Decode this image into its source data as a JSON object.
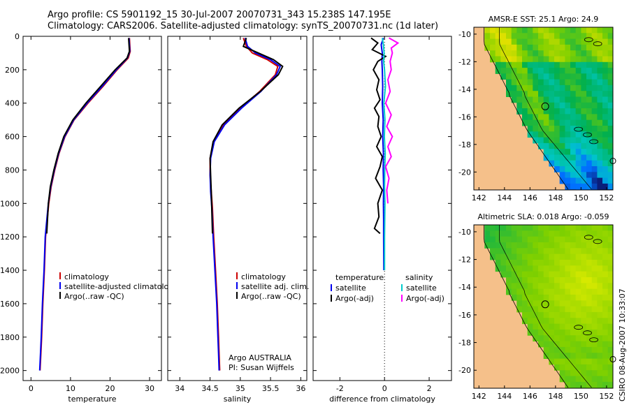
{
  "header": {
    "line1": "Argo profile: CS 5901192_15 30-Jul-2007 20070731_343 15.238S 147.195E",
    "line2": "Climatology: CARS2006. Satellite-adjusted climatology: synTS_20070731.nc (1d later)"
  },
  "footer": {
    "stamp": "CSIRO 08-Aug-2007 10:33:07"
  },
  "colors": {
    "climatology": "#cc0000",
    "satellite": "#0000ee",
    "argo": "#000000",
    "salinity_satellite": "#00cccc",
    "salinity_argo": "#ff00ff",
    "land": "#f5c08a"
  },
  "chart_data": [
    {
      "type": "line",
      "xlabel": "temperature",
      "xlim": [
        -2,
        33
      ],
      "xticks": [
        0,
        10,
        20,
        30
      ],
      "ylim": [
        2060,
        0
      ],
      "yticks": [
        0,
        200,
        400,
        600,
        800,
        1000,
        1200,
        1400,
        1600,
        1800,
        2000
      ],
      "legend_position": "lower-right",
      "series": [
        {
          "name": "climatology",
          "color": "#cc0000",
          "x": [
            24.9,
            25.0,
            25.1,
            24.6,
            21.8,
            18.2,
            14.4,
            10.9,
            8.6,
            7.1,
            6.0,
            5.1,
            4.5,
            4.1,
            3.7,
            3.4,
            3.0,
            2.7,
            2.5,
            2.3
          ],
          "y": [
            10,
            50,
            90,
            130,
            200,
            300,
            400,
            500,
            600,
            700,
            800,
            900,
            1000,
            1100,
            1200,
            1400,
            1600,
            1800,
            1900,
            2000
          ]
        },
        {
          "name": "satellite-adjusted climatology",
          "color": "#0000ee",
          "x": [
            24.8,
            24.9,
            25.0,
            24.4,
            21.6,
            18.0,
            14.2,
            10.8,
            8.5,
            7.0,
            5.9,
            5.0,
            4.4,
            4.0,
            3.6,
            3.3,
            2.9,
            2.6,
            2.4,
            2.2
          ],
          "y": [
            10,
            50,
            90,
            130,
            200,
            300,
            400,
            500,
            600,
            700,
            800,
            900,
            1000,
            1100,
            1200,
            1400,
            1600,
            1800,
            1900,
            2000
          ]
        },
        {
          "name": "Argo(..raw -QC)",
          "color": "#000000",
          "x": [
            24.7,
            24.8,
            24.9,
            24.3,
            21.3,
            17.6,
            13.9,
            10.6,
            8.3,
            6.9,
            5.8,
            4.9,
            4.4,
            4.0
          ],
          "y": [
            10,
            50,
            90,
            130,
            200,
            300,
            400,
            500,
            600,
            700,
            800,
            900,
            1000,
            1180
          ]
        }
      ]
    },
    {
      "type": "line",
      "xlabel": "salinity",
      "xlim": [
        33.8,
        36.1
      ],
      "xticks": [
        34,
        34.5,
        35,
        35.5,
        36
      ],
      "ylim": [
        2060,
        0
      ],
      "yticks": [
        0,
        200,
        400,
        600,
        800,
        1000,
        1200,
        1400,
        1600,
        1800,
        2000
      ],
      "legend_position": "lower-right",
      "annotations": [
        "Argo AUSTRALIA",
        "PI: Susan Wijffels"
      ],
      "series": [
        {
          "name": "climatology",
          "color": "#cc0000",
          "x": [
            35.05,
            35.1,
            35.2,
            35.45,
            35.62,
            35.58,
            35.32,
            35.0,
            34.72,
            34.56,
            34.5,
            34.5,
            34.52,
            34.54,
            34.56,
            34.59,
            34.62,
            34.64,
            34.65,
            34.66
          ],
          "y": [
            10,
            60,
            100,
            140,
            180,
            230,
            330,
            430,
            530,
            630,
            730,
            830,
            930,
            1030,
            1200,
            1400,
            1600,
            1800,
            1900,
            2000
          ]
        },
        {
          "name": "satellite adj. clim.",
          "color": "#0000ee",
          "x": [
            35.08,
            35.12,
            35.25,
            35.5,
            35.66,
            35.6,
            35.34,
            35.02,
            34.74,
            34.57,
            34.51,
            34.5,
            34.51,
            34.53,
            34.55,
            34.58,
            34.61,
            34.63,
            34.64,
            34.65
          ],
          "y": [
            10,
            60,
            100,
            140,
            180,
            230,
            330,
            430,
            530,
            630,
            730,
            830,
            930,
            1030,
            1200,
            1400,
            1600,
            1800,
            1900,
            2000
          ]
        },
        {
          "name": "Argo(..raw -QC)",
          "color": "#000000",
          "x": [
            35.1,
            35.05,
            35.3,
            35.55,
            35.7,
            35.63,
            35.33,
            34.98,
            34.7,
            34.55,
            34.5,
            34.51,
            34.52,
            34.54
          ],
          "y": [
            10,
            60,
            100,
            140,
            180,
            230,
            330,
            430,
            530,
            630,
            730,
            830,
            930,
            1180
          ]
        }
      ]
    },
    {
      "type": "line",
      "xlabel": "difference from climatology",
      "xlim": [
        -3.2,
        3.0
      ],
      "xticks": [
        -2,
        0,
        2
      ],
      "ylim": [
        2060,
        0
      ],
      "yticks": [
        0,
        200,
        400,
        600,
        800,
        1000,
        1200,
        1400,
        1600,
        1800,
        2000
      ],
      "legend_position": "lower-center",
      "legend_headers": [
        "temperature",
        "salinity"
      ],
      "zero_line": "dotted",
      "series": [
        {
          "name": "satellite",
          "group": "temperature",
          "color": "#0000ee",
          "x": [
            -0.05,
            -0.15,
            -0.1,
            -0.12,
            -0.1,
            -0.08,
            -0.1,
            -0.06,
            -0.08,
            -0.05,
            -0.06,
            -0.04,
            -0.05,
            -0.04,
            -0.04,
            -0.03
          ],
          "y": [
            10,
            50,
            100,
            150,
            200,
            300,
            400,
            500,
            600,
            700,
            800,
            900,
            1000,
            1100,
            1200,
            1400
          ]
        },
        {
          "name": "Argo(-adj)",
          "group": "temperature",
          "color": "#000000",
          "x": [
            -0.6,
            -0.3,
            -0.55,
            0.05,
            -0.3,
            -0.5,
            -0.25,
            -0.35,
            -0.2,
            -0.45,
            -0.25,
            -0.3,
            -0.15,
            -0.35,
            -0.1,
            -0.2,
            -0.4,
            -0.1,
            -0.3,
            -0.25,
            -0.45,
            -0.2
          ],
          "y": [
            10,
            40,
            80,
            120,
            150,
            200,
            260,
            320,
            380,
            430,
            480,
            540,
            600,
            660,
            720,
            780,
            850,
            920,
            1000,
            1080,
            1150,
            1180
          ]
        },
        {
          "name": "satellite",
          "group": "salinity",
          "color": "#00cccc",
          "x": [
            -0.1,
            -0.05,
            -0.02,
            -0.04,
            0.0,
            0.04,
            -0.03,
            0.02,
            -0.01,
            0.03,
            0.01,
            0.0,
            0.02,
            0.01,
            0.0,
            0.0
          ],
          "y": [
            10,
            50,
            100,
            150,
            200,
            300,
            400,
            500,
            600,
            700,
            800,
            900,
            1000,
            1100,
            1200,
            1400
          ]
        },
        {
          "name": "Argo(-adj)",
          "group": "salinity",
          "color": "#ff00ff",
          "x": [
            0.2,
            0.6,
            0.3,
            0.35,
            0.25,
            0.3,
            0.15,
            0.25,
            0.05,
            0.3,
            0.1,
            0.35,
            0.15,
            0.3,
            0.05,
            0.2,
            0.1,
            0.15
          ],
          "y": [
            10,
            40,
            70,
            100,
            150,
            200,
            260,
            330,
            400,
            470,
            540,
            600,
            660,
            720,
            780,
            850,
            920,
            1000
          ]
        }
      ]
    },
    {
      "type": "heatmap",
      "title": "AMSR-E SST: 25.1 Argo: 24.9",
      "xlim": [
        141.6,
        152.5
      ],
      "ylim": [
        -21.3,
        -9.5
      ],
      "xticks": [
        142,
        144,
        146,
        148,
        150,
        152
      ],
      "yticks": [
        -10,
        -12,
        -14,
        -16,
        -18,
        -20
      ],
      "marker": {
        "lon": 147.195,
        "lat": -15.238
      },
      "colorscale": [
        "#0a1e7a",
        "#0070ff",
        "#00c8c8",
        "#00b050",
        "#7fd000",
        "#e0e000"
      ]
    },
    {
      "type": "heatmap",
      "title": "Altimetric SLA: 0.018 Argo: -0.059",
      "xlim": [
        141.6,
        152.5
      ],
      "ylim": [
        -21.3,
        -9.5
      ],
      "xticks": [
        142,
        144,
        146,
        148,
        150,
        152
      ],
      "yticks": [
        -10,
        -12,
        -14,
        -16,
        -18,
        -20
      ],
      "marker": {
        "lon": 147.195,
        "lat": -15.238
      },
      "colorscale": [
        "#00b050",
        "#7fd000",
        "#e8ee00"
      ]
    }
  ]
}
